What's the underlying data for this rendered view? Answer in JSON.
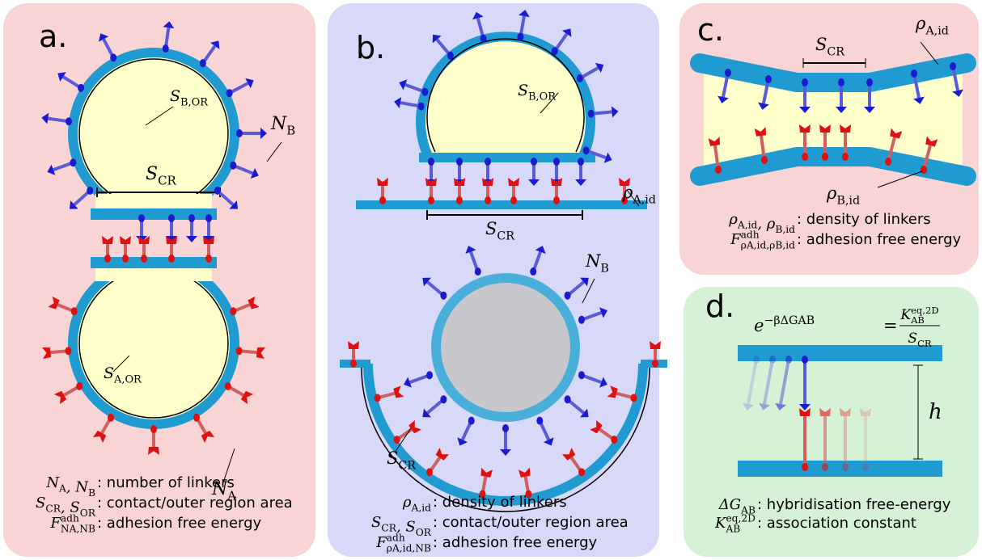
{
  "panels": {
    "a": {
      "label": "a.",
      "annotations": {
        "s_bor": {
          "base": "S",
          "sub": "B,OR"
        },
        "n_b": {
          "base": "N",
          "sub": "B"
        },
        "s_cr": {
          "base": "S",
          "sub": "CR"
        },
        "s_aor": {
          "base": "S",
          "sub": "A,OR"
        },
        "n_a": {
          "base": "N",
          "sub": "A"
        }
      },
      "legend": [
        {
          "symbol": [
            {
              "base": "N",
              "sub": "A"
            },
            {
              "base": ", N",
              "sub": "B"
            }
          ],
          "text": ": number of linkers"
        },
        {
          "symbol": [
            {
              "base": "S",
              "sub": "CR"
            },
            {
              "base": ", S",
              "sub": "OR"
            }
          ],
          "text": ": contact/outer region area"
        },
        {
          "symbol": [
            {
              "base": "F",
              "sup": "adh",
              "sub": "NA,NB"
            }
          ],
          "text": ": adhesion free energy"
        }
      ]
    },
    "b": {
      "label": "b.",
      "annotations": {
        "s_bor": {
          "base": "S",
          "sub": "B,OR"
        },
        "rho_aid": {
          "base": "ρ",
          "sub": "A,id"
        },
        "s_cr": {
          "base": "S",
          "sub": "CR"
        },
        "n_b": {
          "base": "N",
          "sub": "B"
        },
        "s_cr2": {
          "base": "S",
          "sub": "CR"
        }
      },
      "legend": [
        {
          "symbol": [
            {
              "base": "ρ",
              "sub": "A,id"
            }
          ],
          "text": ": density of linkers"
        },
        {
          "symbol": [
            {
              "base": "S",
              "sub": "CR"
            },
            {
              "base": ", S",
              "sub": "OR"
            }
          ],
          "text": ": contact/outer region area"
        },
        {
          "symbol": [
            {
              "base": "F",
              "sup": "adh",
              "sub": "ρA,id,NB"
            }
          ],
          "text": ": adhesion free energy"
        }
      ]
    },
    "c": {
      "label": "c.",
      "annotations": {
        "s_cr": {
          "base": "S",
          "sub": "CR"
        },
        "rho_aid": {
          "base": "ρ",
          "sub": "A,id"
        },
        "rho_bid": {
          "base": "ρ",
          "sub": "B,id"
        }
      },
      "legend": [
        {
          "symbol": [
            {
              "base": "ρ",
              "sub": "A,id"
            },
            {
              "base": ", ρ",
              "sub": "B,id"
            }
          ],
          "text": ": density of linkers"
        },
        {
          "symbol": [
            {
              "base": "F",
              "sup": "adh",
              "sub": "ρA,id,ρB,id"
            }
          ],
          "text": ": adhesion free energy"
        }
      ]
    },
    "d": {
      "label": "d.",
      "equation": {
        "lhs": {
          "base": "e",
          "sup": "−βΔGAB"
        },
        "equals": "=",
        "numerator": {
          "base": "K",
          "sup": "eq,2D",
          "sub": "AB"
        },
        "denominator": {
          "base": "S",
          "sub": "CR"
        }
      },
      "annotations": {
        "h": {
          "base": "h"
        }
      },
      "legend": [
        {
          "symbol": [
            {
              "base": "ΔG",
              "sub": "AB"
            }
          ],
          "text": ": hybridisation free-energy"
        },
        {
          "symbol": [
            {
              "base": "K",
              "sup": "eq,2D",
              "sub": "AB"
            }
          ],
          "text": ": association constant"
        }
      ]
    }
  }
}
